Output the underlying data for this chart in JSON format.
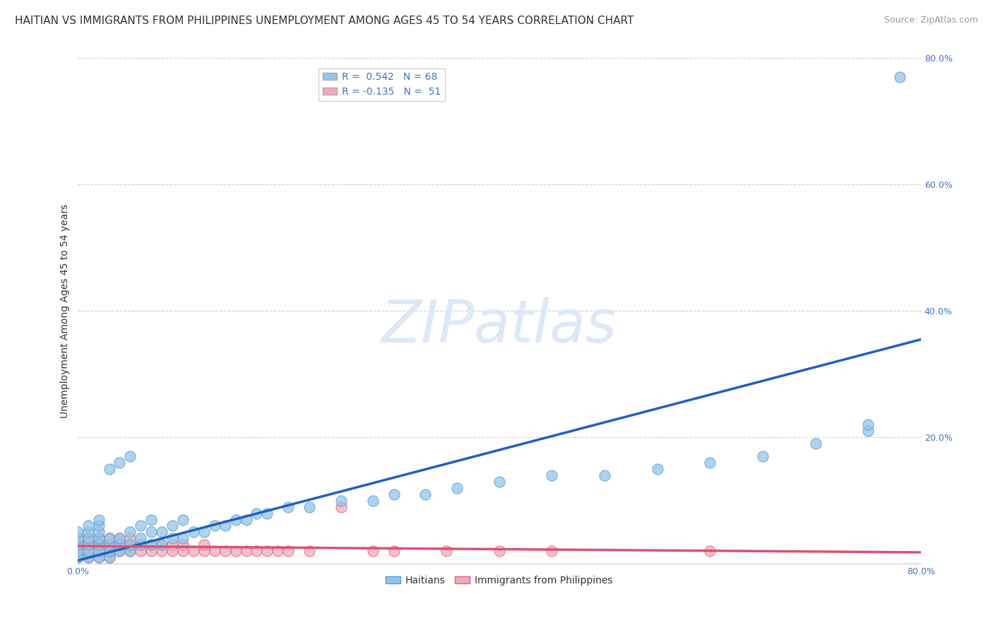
{
  "title": "HAITIAN VS IMMIGRANTS FROM PHILIPPINES UNEMPLOYMENT AMONG AGES 45 TO 54 YEARS CORRELATION CHART",
  "source": "Source: ZipAtlas.com",
  "ylabel": "Unemployment Among Ages 45 to 54 years",
  "background_color": "#ffffff",
  "watermark": "ZIPatlas",
  "grid_color": "#d0d0d0",
  "xlim": [
    0,
    0.8
  ],
  "ylim": [
    0,
    0.8
  ],
  "ytick_values": [
    0.0,
    0.2,
    0.4,
    0.6,
    0.8
  ],
  "ytick_labels": [
    "",
    "20.0%",
    "40.0%",
    "60.0%",
    "80.0%"
  ],
  "xtick_values": [
    0.0,
    0.8
  ],
  "xtick_labels": [
    "0.0%",
    "80.0%"
  ],
  "legend_entries": [
    {
      "label": "R =  0.542   N = 68",
      "color": "#92C5E8"
    },
    {
      "label": "R = -0.135   N =  51",
      "color": "#F4AABC"
    }
  ],
  "haitian_scatter": {
    "x": [
      0.0,
      0.0,
      0.0,
      0.0,
      0.0,
      0.01,
      0.01,
      0.01,
      0.01,
      0.01,
      0.01,
      0.02,
      0.02,
      0.02,
      0.02,
      0.02,
      0.02,
      0.02,
      0.03,
      0.03,
      0.03,
      0.03,
      0.03,
      0.04,
      0.04,
      0.04,
      0.04,
      0.05,
      0.05,
      0.05,
      0.05,
      0.06,
      0.06,
      0.06,
      0.07,
      0.07,
      0.07,
      0.08,
      0.08,
      0.09,
      0.09,
      0.1,
      0.1,
      0.11,
      0.12,
      0.13,
      0.14,
      0.15,
      0.16,
      0.17,
      0.18,
      0.2,
      0.22,
      0.25,
      0.28,
      0.3,
      0.33,
      0.36,
      0.4,
      0.45,
      0.5,
      0.55,
      0.6,
      0.65,
      0.7,
      0.75,
      0.78,
      0.75
    ],
    "y": [
      0.01,
      0.02,
      0.03,
      0.04,
      0.05,
      0.01,
      0.02,
      0.03,
      0.04,
      0.05,
      0.06,
      0.01,
      0.02,
      0.03,
      0.04,
      0.05,
      0.06,
      0.07,
      0.01,
      0.02,
      0.03,
      0.04,
      0.15,
      0.02,
      0.03,
      0.04,
      0.16,
      0.02,
      0.03,
      0.05,
      0.17,
      0.03,
      0.04,
      0.06,
      0.03,
      0.05,
      0.07,
      0.03,
      0.05,
      0.04,
      0.06,
      0.04,
      0.07,
      0.05,
      0.05,
      0.06,
      0.06,
      0.07,
      0.07,
      0.08,
      0.08,
      0.09,
      0.09,
      0.1,
      0.1,
      0.11,
      0.11,
      0.12,
      0.13,
      0.14,
      0.14,
      0.15,
      0.16,
      0.17,
      0.19,
      0.21,
      0.77,
      0.22
    ],
    "color": "#92C5E8",
    "edgecolor": "#5A9BD5",
    "size": 120
  },
  "philippines_scatter": {
    "x": [
      0.0,
      0.0,
      0.0,
      0.0,
      0.01,
      0.01,
      0.01,
      0.01,
      0.02,
      0.02,
      0.02,
      0.02,
      0.03,
      0.03,
      0.03,
      0.03,
      0.04,
      0.04,
      0.04,
      0.05,
      0.05,
      0.05,
      0.06,
      0.06,
      0.07,
      0.07,
      0.08,
      0.08,
      0.09,
      0.09,
      0.1,
      0.1,
      0.11,
      0.12,
      0.12,
      0.13,
      0.14,
      0.15,
      0.16,
      0.17,
      0.18,
      0.19,
      0.2,
      0.22,
      0.25,
      0.28,
      0.3,
      0.35,
      0.4,
      0.45,
      0.6
    ],
    "y": [
      0.01,
      0.02,
      0.03,
      0.04,
      0.01,
      0.02,
      0.03,
      0.04,
      0.01,
      0.02,
      0.03,
      0.04,
      0.01,
      0.02,
      0.03,
      0.04,
      0.02,
      0.03,
      0.04,
      0.02,
      0.03,
      0.04,
      0.02,
      0.03,
      0.02,
      0.03,
      0.02,
      0.03,
      0.02,
      0.03,
      0.02,
      0.03,
      0.02,
      0.02,
      0.03,
      0.02,
      0.02,
      0.02,
      0.02,
      0.02,
      0.02,
      0.02,
      0.02,
      0.02,
      0.09,
      0.02,
      0.02,
      0.02,
      0.02,
      0.02,
      0.02
    ],
    "color": "#F4AABC",
    "edgecolor": "#E0607A",
    "size": 120
  },
  "haitian_line": {
    "x": [
      0.0,
      0.8
    ],
    "y": [
      0.005,
      0.355
    ],
    "color": "#2060C0",
    "linewidth": 2.5
  },
  "philippines_line": {
    "x": [
      0.0,
      0.8
    ],
    "y": [
      0.028,
      0.018
    ],
    "color": "#E05070",
    "linewidth": 2.5
  },
  "title_fontsize": 11,
  "source_fontsize": 9,
  "axis_fontsize": 9,
  "ylabel_fontsize": 10,
  "axis_color": "#4472C4",
  "watermark_color": "#DCE8F5",
  "watermark_fontsize": 60
}
